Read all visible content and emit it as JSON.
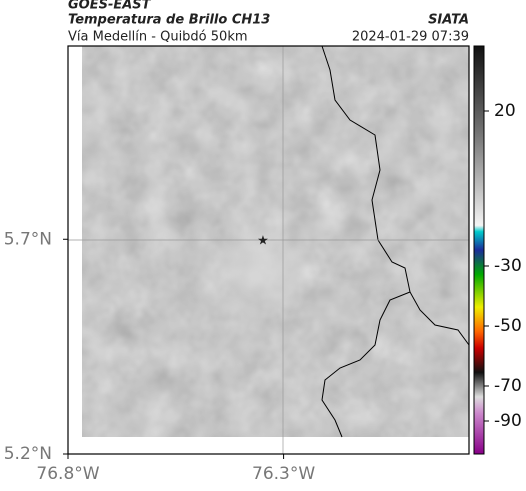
{
  "header": {
    "title": "GOES-EAST",
    "subtitle": "Temperatura de Brillo CH13",
    "source": "SIATA",
    "route": "Vía Medellín - Quibdó 50km",
    "timestamp": "2024-01-29 07:39"
  },
  "map": {
    "lon_range": [
      -76.8,
      -75.87
    ],
    "lat_range": [
      5.2,
      6.15
    ],
    "lon_ticks": [
      {
        "value": -76.8,
        "label": "76.8°W"
      },
      {
        "value": -76.3,
        "label": "76.3°W"
      }
    ],
    "lat_ticks": [
      {
        "value": 5.7,
        "label": "5.7°N"
      },
      {
        "value": 5.2,
        "label": "5.2°N"
      }
    ]
  },
  "colorbar": {
    "ticks": [
      20,
      -30,
      -50,
      -70,
      -90
    ]
  }
}
